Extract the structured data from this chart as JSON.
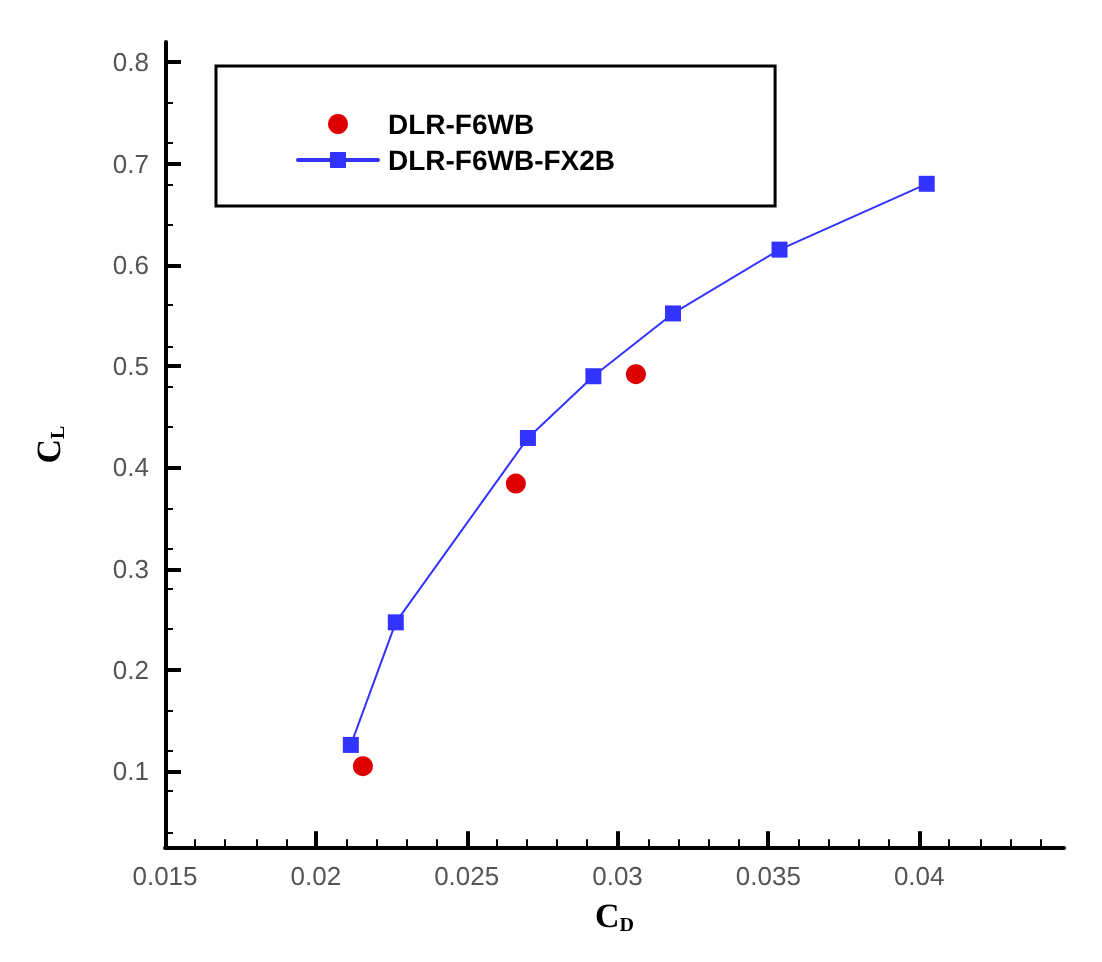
{
  "chart_data": {
    "type": "scatter",
    "xlabel": "C$_{D}$",
    "ylabel": "C$_{L}$",
    "xlim": [
      0.015,
      0.0448
    ],
    "xticks": [
      0.015,
      0.02,
      0.025,
      0.03,
      0.035,
      0.04
    ],
    "ylim": [
      0.025,
      0.82
    ],
    "yticks": [
      0.1,
      0.2,
      0.3,
      0.4,
      0.5,
      0.6,
      0.7,
      0.8
    ],
    "grid": false,
    "legend": "top left",
    "series": [
      {
        "name": "DLR-F6WB",
        "marker": "circle",
        "color": "#dd0000",
        "x": [
          0.02156,
          0.02663,
          0.03061
        ],
        "values": [
          0.105,
          0.384,
          0.492
        ]
      },
      {
        "name": "DLR-F6WB-FX2B",
        "type": "line",
        "marker": "square",
        "line_style": "solid",
        "color": "#3333ff",
        "x": [
          0.02116,
          0.02265,
          0.02703,
          0.0292,
          0.03184,
          0.03537,
          0.04025
        ],
        "values": [
          0.126,
          0.247,
          0.429,
          0.49,
          0.552,
          0.615,
          0.68
        ]
      }
    ]
  }
}
